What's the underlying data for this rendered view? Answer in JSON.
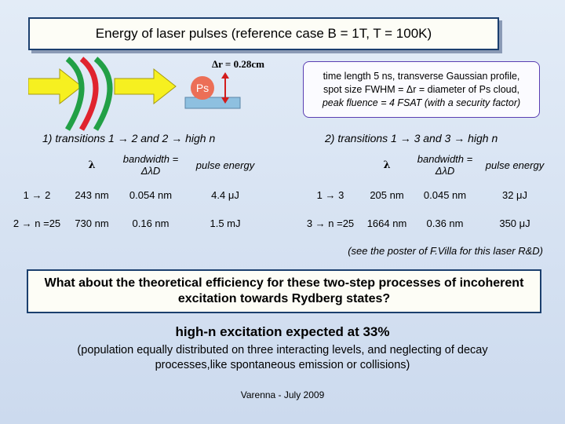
{
  "header": {
    "title": "Energy of laser pulses (reference case  B = 1T, T = 100K)"
  },
  "diagram": {
    "ps_label": "Ps",
    "delta_r_label": "Δr = 0.28cm",
    "colors": {
      "arrow_fill": "#f6f020",
      "wave_green": "#22a046",
      "wave_red": "#e0232e",
      "ps_circle": "#ec6f57",
      "target_rect": "#8ec0e0",
      "double_arrow": "#d21c1c"
    }
  },
  "info": {
    "line1": "time length 5 ns, transverse Gaussian profile,",
    "line2": "spot size FWHM = Δr = diameter of Ps cloud,",
    "line3": "peak fluence = 4 FSAT  (with a security factor)"
  },
  "sections": {
    "left_title": "1)  transitions 1 → 2 and 2 → high n",
    "right_title": "2)  transitions 1 → 3 and 3 → high n"
  },
  "left_table": {
    "headers": [
      "",
      "λ",
      "bandwidth = ΔλD",
      "pulse energy"
    ],
    "rows": [
      [
        "1 → 2",
        "243 nm",
        "0.054 nm",
        "4.4 μJ"
      ],
      [
        "2 → n =25",
        "730 nm",
        "0.16 nm",
        "1.5 mJ"
      ]
    ]
  },
  "right_table": {
    "headers": [
      "",
      "λ",
      "bandwidth = ΔλD",
      "pulse energy"
    ],
    "rows": [
      [
        "1 → 3",
        "205 nm",
        "0.045 nm",
        "32 μJ"
      ],
      [
        "3 → n =25",
        "1664 nm",
        "0.36 nm",
        "350 μJ"
      ]
    ]
  },
  "note": "(see the poster of F.Villa for this laser R&D)",
  "question": "What about the theoretical efficiency for these two-step processes of incoherent excitation towards Rydberg states?",
  "result": "high-n excitation expected at 33%",
  "explanation": "(population equally distributed on three interacting levels, and neglecting of decay processes,like spontaneous emission or collisions)",
  "footer": "Varenna - July 2009"
}
